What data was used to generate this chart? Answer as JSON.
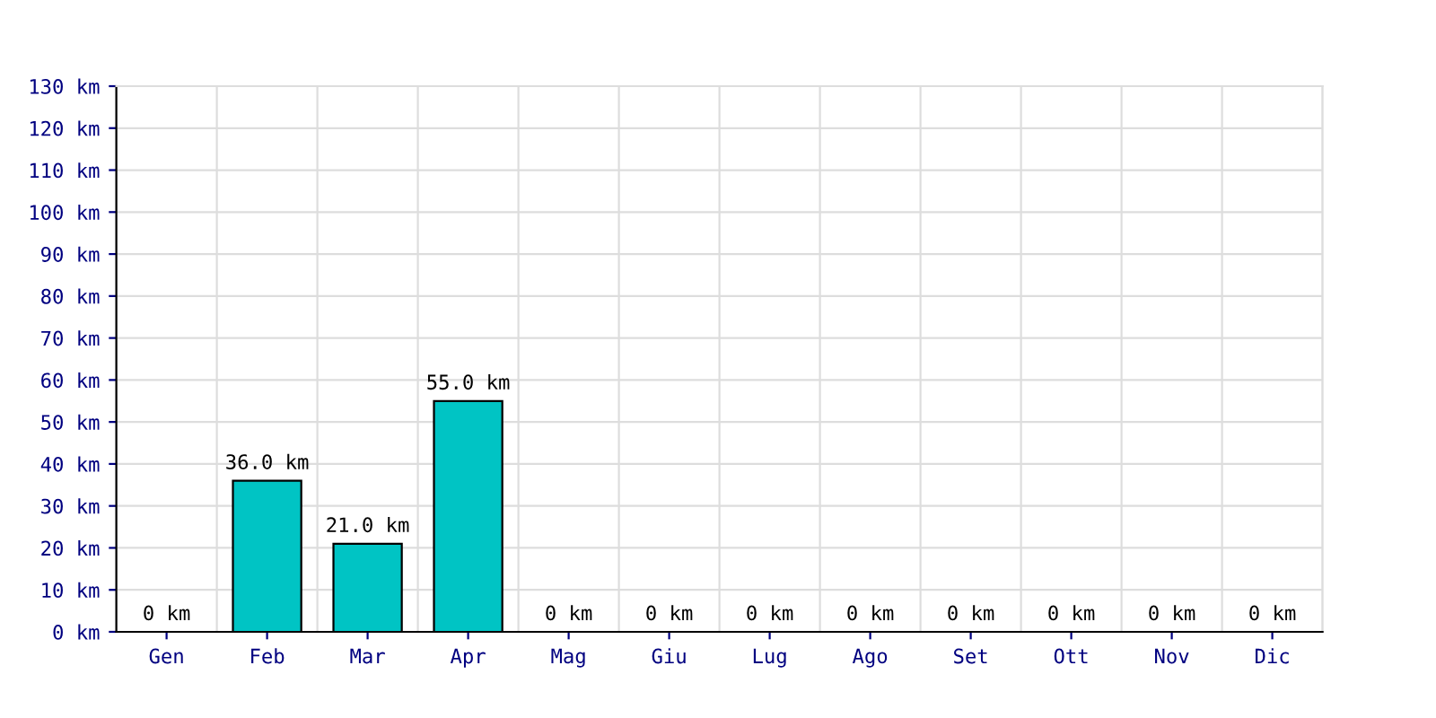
{
  "chart_data": {
    "type": "bar",
    "categories": [
      "Gen",
      "Feb",
      "Mar",
      "Apr",
      "Mag",
      "Giu",
      "Lug",
      "Ago",
      "Set",
      "Ott",
      "Nov",
      "Dic"
    ],
    "values": [
      0,
      36.0,
      21.0,
      55.0,
      0,
      0,
      0,
      0,
      0,
      0,
      0,
      0
    ],
    "value_labels": [
      "0 km",
      "36.0 km",
      "21.0 km",
      "55.0 km",
      "0 km",
      "0 km",
      "0 km",
      "0 km",
      "0 km",
      "0 km",
      "0 km",
      "0 km"
    ],
    "color": "#00c4c4",
    "ylim": [
      0,
      130
    ],
    "yticks": [
      {
        "value": 0,
        "label": "0 km"
      },
      {
        "value": 10,
        "label": "10 km"
      },
      {
        "value": 20,
        "label": "20 km"
      },
      {
        "value": 30,
        "label": "30 km"
      },
      {
        "value": 40,
        "label": "40 km"
      },
      {
        "value": 50,
        "label": "50 km"
      },
      {
        "value": 60,
        "label": "60 km"
      },
      {
        "value": 70,
        "label": "70 km"
      },
      {
        "value": 80,
        "label": "80 km"
      },
      {
        "value": 90,
        "label": "90 km"
      },
      {
        "value": 100,
        "label": "100 km"
      },
      {
        "value": 110,
        "label": "110 km"
      },
      {
        "value": 120,
        "label": "120 km"
      },
      {
        "value": 130,
        "label": "130 km"
      }
    ],
    "grid": true
  }
}
